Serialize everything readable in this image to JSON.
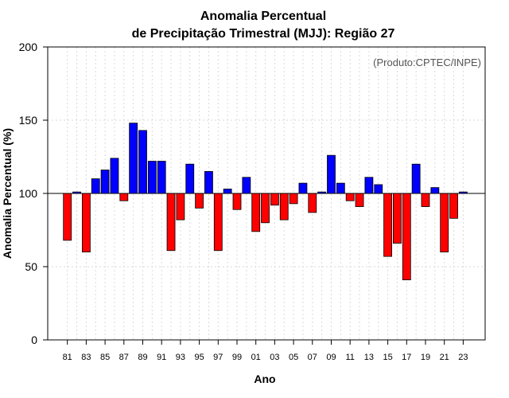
{
  "chart_data": {
    "type": "bar",
    "title_line1": "Anomalia Percentual",
    "title_line2": "de Precipitação Trimestral (MJJ): Região 27",
    "xlabel": "Ano",
    "ylabel": "Anomalia Percentual (%)",
    "credit": "(Produto:CPTEC/INPE)",
    "ylim": [
      0,
      200
    ],
    "yticks": [
      "0",
      "50",
      "100",
      "150",
      "200"
    ],
    "baseline": 100,
    "grid": true,
    "colors": {
      "above": "#0000ff",
      "below": "#ff0000",
      "edge": "#000000",
      "grid": "#d9d9d9"
    },
    "xtick_labels": [
      "81",
      "83",
      "85",
      "87",
      "89",
      "91",
      "93",
      "95",
      "97",
      "99",
      "01",
      "03",
      "05",
      "07",
      "09",
      "11",
      "13",
      "15",
      "17",
      "19",
      "21",
      "23"
    ],
    "years": [
      "1981",
      "1982",
      "1983",
      "1984",
      "1985",
      "1986",
      "1987",
      "1988",
      "1989",
      "1990",
      "1991",
      "1992",
      "1993",
      "1994",
      "1995",
      "1996",
      "1997",
      "1998",
      "1999",
      "2000",
      "2001",
      "2002",
      "2003",
      "2004",
      "2005",
      "2006",
      "2007",
      "2008",
      "2009",
      "2010",
      "2011",
      "2012",
      "2013",
      "2014",
      "2015",
      "2016",
      "2017",
      "2018",
      "2019",
      "2020",
      "2021",
      "2022",
      "2023"
    ],
    "values": [
      68,
      101,
      60,
      110,
      116,
      124,
      95,
      148,
      143,
      122,
      122,
      61,
      82,
      120,
      90,
      115,
      61,
      103,
      89,
      111,
      74,
      80,
      92,
      82,
      93,
      107,
      87,
      101,
      126,
      107,
      95,
      91,
      111,
      106,
      57,
      66,
      41,
      120,
      91,
      104,
      60,
      83,
      101
    ]
  }
}
